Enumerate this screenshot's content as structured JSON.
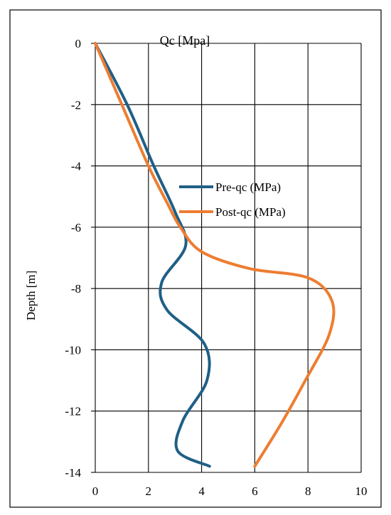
{
  "chart_data": {
    "type": "line",
    "title": "Qc [Mpa]",
    "xlabel": "",
    "ylabel": "Depth [m]",
    "xlim": [
      0,
      10
    ],
    "ylim": [
      -14,
      0
    ],
    "x_ticks": [
      "0",
      "2",
      "4",
      "6",
      "8",
      "10"
    ],
    "y_ticks": [
      "0",
      "-2",
      "-4",
      "-6",
      "-8",
      "-10",
      "-12",
      "-14"
    ],
    "grid": true,
    "legend_position": "center-right",
    "series": [
      {
        "name": "Pre-qc (MPa)",
        "color": "#1f5f86",
        "points": [
          {
            "x": 0.0,
            "y": 0.0
          },
          {
            "x": 1.2,
            "y": -2.0
          },
          {
            "x": 2.2,
            "y": -4.0
          },
          {
            "x": 3.0,
            "y": -5.5
          },
          {
            "x": 3.4,
            "y": -6.6
          },
          {
            "x": 2.5,
            "y": -7.8
          },
          {
            "x": 2.7,
            "y": -8.7
          },
          {
            "x": 4.1,
            "y": -9.8
          },
          {
            "x": 4.2,
            "y": -11.0
          },
          {
            "x": 3.3,
            "y": -12.3
          },
          {
            "x": 3.1,
            "y": -13.3
          },
          {
            "x": 4.3,
            "y": -13.8
          }
        ]
      },
      {
        "name": "Post-qc (MPa)",
        "color": "#ed7d31",
        "points": [
          {
            "x": 0.0,
            "y": 0.0
          },
          {
            "x": 1.0,
            "y": -2.0
          },
          {
            "x": 2.0,
            "y": -4.0
          },
          {
            "x": 2.7,
            "y": -5.2
          },
          {
            "x": 3.2,
            "y": -6.0
          },
          {
            "x": 4.0,
            "y": -6.8
          },
          {
            "x": 5.8,
            "y": -7.35
          },
          {
            "x": 8.0,
            "y": -7.65
          },
          {
            "x": 8.9,
            "y": -8.4
          },
          {
            "x": 8.8,
            "y": -9.5
          },
          {
            "x": 7.9,
            "y": -11.0
          },
          {
            "x": 7.0,
            "y": -12.4
          },
          {
            "x": 6.0,
            "y": -13.8
          }
        ]
      }
    ]
  }
}
